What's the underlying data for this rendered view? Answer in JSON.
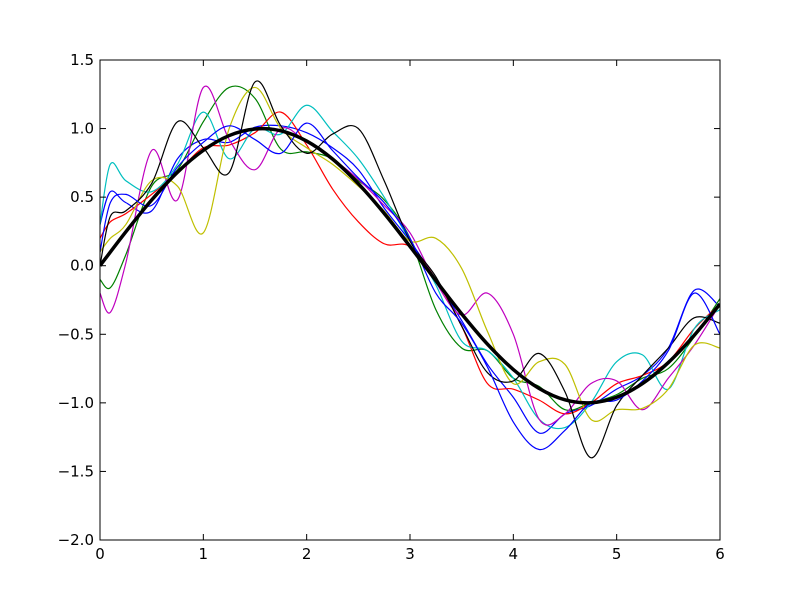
{
  "chart_data": {
    "type": "line",
    "title": "",
    "xlabel": "",
    "ylabel": "",
    "xlim": [
      0,
      6
    ],
    "ylim": [
      -2.0,
      1.5
    ],
    "grid": false,
    "legend": "none",
    "x_ticks": [
      0,
      1,
      2,
      3,
      4,
      5,
      6
    ],
    "y_ticks": [
      -2.0,
      -1.5,
      -1.0,
      -0.5,
      0.0,
      0.5,
      1.0,
      1.5
    ],
    "x_tick_labels": [
      "0",
      "1",
      "2",
      "3",
      "4",
      "5",
      "6"
    ],
    "y_tick_labels": [
      "−2.0",
      "−1.5",
      "−1.0",
      "−0.5",
      "0.0",
      "0.5",
      "1.0",
      "1.5"
    ],
    "reference": {
      "function": "sin(x)",
      "color": "#000000",
      "x": [
        0,
        0.25,
        0.5,
        0.75,
        1.0,
        1.25,
        1.5,
        1.75,
        2.0,
        2.25,
        2.5,
        2.75,
        3.0,
        3.25,
        3.5,
        3.75,
        4.0,
        4.25,
        4.5,
        4.75,
        5.0,
        5.25,
        5.5,
        5.75,
        6.0
      ],
      "y": [
        0.0,
        0.247,
        0.479,
        0.682,
        0.841,
        0.949,
        0.997,
        0.984,
        0.909,
        0.778,
        0.598,
        0.382,
        0.141,
        -0.108,
        -0.351,
        -0.572,
        -0.757,
        -0.895,
        -0.978,
        -0.999,
        -0.959,
        -0.859,
        -0.706,
        -0.508,
        -0.279
      ]
    },
    "series": [
      {
        "color": "#0000ff",
        "x": [
          0,
          0.1,
          0.25,
          0.5,
          0.75,
          1.0,
          1.25,
          1.5,
          1.75,
          2.0,
          2.25,
          2.5,
          2.75,
          3.0,
          3.25,
          3.5,
          3.75,
          4.0,
          4.25,
          4.5,
          4.75,
          5.0,
          5.25,
          5.5,
          5.75,
          6.0
        ],
        "y": [
          0.3,
          0.54,
          0.46,
          0.4,
          0.78,
          0.92,
          0.9,
          1.01,
          1.02,
          0.97,
          0.86,
          0.7,
          0.42,
          0.18,
          -0.1,
          -0.4,
          -0.72,
          -0.96,
          -1.22,
          -1.08,
          -1.02,
          -0.9,
          -0.8,
          -0.6,
          -0.18,
          -0.3
        ]
      },
      {
        "color": "#008000",
        "x": [
          0,
          0.1,
          0.25,
          0.5,
          0.75,
          1.0,
          1.25,
          1.5,
          1.75,
          2.0,
          2.25,
          2.5,
          2.75,
          3.0,
          3.25,
          3.5,
          3.75,
          4.0,
          4.25,
          4.5,
          4.75,
          5.0,
          5.25,
          5.5,
          5.75,
          6.0
        ],
        "y": [
          -0.1,
          -0.16,
          0.08,
          0.58,
          0.7,
          1.05,
          1.3,
          1.22,
          0.85,
          0.83,
          0.78,
          0.62,
          0.48,
          0.2,
          -0.32,
          -0.6,
          -0.62,
          -0.82,
          -0.88,
          -1.05,
          -1.0,
          -0.94,
          -0.82,
          -0.75,
          -0.52,
          -0.24
        ]
      },
      {
        "color": "#ff0000",
        "x": [
          0,
          0.1,
          0.25,
          0.5,
          0.75,
          1.0,
          1.25,
          1.5,
          1.75,
          2.0,
          2.25,
          2.5,
          2.75,
          3.0,
          3.25,
          3.5,
          3.75,
          4.0,
          4.25,
          4.5,
          4.75,
          5.0,
          5.25,
          5.5,
          5.75,
          6.0
        ],
        "y": [
          0.2,
          0.32,
          0.38,
          0.52,
          0.68,
          0.86,
          0.88,
          0.97,
          1.12,
          0.88,
          0.56,
          0.32,
          0.16,
          0.14,
          -0.1,
          -0.44,
          -0.86,
          -0.9,
          -0.98,
          -1.08,
          -1.0,
          -0.86,
          -0.8,
          -0.7,
          -0.46,
          -0.28
        ]
      },
      {
        "color": "#00bfbf",
        "x": [
          0,
          0.1,
          0.25,
          0.5,
          0.75,
          1.0,
          1.25,
          1.5,
          1.75,
          2.0,
          2.25,
          2.5,
          2.75,
          3.0,
          3.25,
          3.5,
          3.75,
          4.0,
          4.25,
          4.5,
          4.75,
          5.0,
          5.25,
          5.5,
          5.75,
          6.0
        ],
        "y": [
          0.3,
          0.74,
          0.62,
          0.54,
          0.74,
          1.12,
          0.78,
          1.0,
          0.96,
          1.17,
          0.98,
          0.78,
          0.5,
          0.18,
          -0.14,
          -0.55,
          -0.62,
          -0.82,
          -1.12,
          -1.18,
          -1.0,
          -0.7,
          -0.65,
          -0.9,
          -0.46,
          -0.32
        ]
      },
      {
        "color": "#bf00bf",
        "x": [
          0,
          0.1,
          0.25,
          0.5,
          0.75,
          1.0,
          1.25,
          1.5,
          1.75,
          2.0,
          2.25,
          2.5,
          2.75,
          3.0,
          3.25,
          3.5,
          3.75,
          4.0,
          4.25,
          4.5,
          4.75,
          5.0,
          5.25,
          5.5,
          5.75,
          6.0
        ],
        "y": [
          -0.2,
          -0.34,
          0.02,
          0.84,
          0.48,
          1.3,
          0.92,
          0.7,
          1.0,
          0.9,
          0.78,
          0.63,
          0.44,
          0.24,
          -0.12,
          -0.36,
          -0.2,
          -0.5,
          -1.12,
          -1.08,
          -0.86,
          -0.84,
          -1.05,
          -0.82,
          -0.58,
          -0.28
        ]
      },
      {
        "color": "#bfbf00",
        "x": [
          0,
          0.1,
          0.25,
          0.5,
          0.75,
          1.0,
          1.25,
          1.5,
          1.75,
          2.0,
          2.25,
          2.5,
          2.75,
          3.0,
          3.25,
          3.5,
          3.75,
          4.0,
          4.25,
          4.5,
          4.75,
          5.0,
          5.25,
          5.5,
          5.75,
          6.0
        ],
        "y": [
          0.1,
          0.2,
          0.3,
          0.62,
          0.58,
          0.24,
          1.0,
          1.3,
          1.0,
          0.86,
          0.74,
          0.58,
          0.4,
          0.18,
          0.2,
          -0.02,
          -0.48,
          -0.86,
          -0.7,
          -0.72,
          -1.12,
          -1.05,
          -1.04,
          -0.9,
          -0.58,
          -0.6
        ]
      },
      {
        "color": "#000000",
        "x": [
          0,
          0.1,
          0.25,
          0.5,
          0.75,
          1.0,
          1.25,
          1.5,
          1.75,
          2.0,
          2.25,
          2.5,
          2.75,
          3.0,
          3.25,
          3.5,
          3.75,
          4.0,
          4.25,
          4.5,
          4.75,
          5.0,
          5.25,
          5.5,
          5.75,
          6.0
        ],
        "y": [
          0.0,
          0.36,
          0.4,
          0.6,
          1.05,
          0.86,
          0.68,
          1.34,
          1.02,
          0.82,
          0.96,
          1.0,
          0.62,
          0.18,
          -0.08,
          -0.44,
          -0.78,
          -0.84,
          -0.64,
          -0.92,
          -1.4,
          -1.02,
          -0.8,
          -0.6,
          -0.38,
          -0.42
        ]
      },
      {
        "color": "#0000ff",
        "x": [
          0,
          0.1,
          0.25,
          0.5,
          0.75,
          1.0,
          1.25,
          1.5,
          1.75,
          2.0,
          2.25,
          2.5,
          2.75,
          3.0,
          3.25,
          3.5,
          3.75,
          4.0,
          4.25,
          4.5,
          4.75,
          5.0,
          5.25,
          5.5,
          5.75,
          6.0
        ],
        "y": [
          0.1,
          0.46,
          0.52,
          0.44,
          0.72,
          0.9,
          1.02,
          0.92,
          0.82,
          1.04,
          0.84,
          0.64,
          0.46,
          0.2,
          -0.2,
          -0.42,
          -0.74,
          -1.14,
          -1.34,
          -1.2,
          -1.0,
          -0.98,
          -0.84,
          -0.62,
          -0.2,
          -0.5
        ]
      }
    ]
  }
}
